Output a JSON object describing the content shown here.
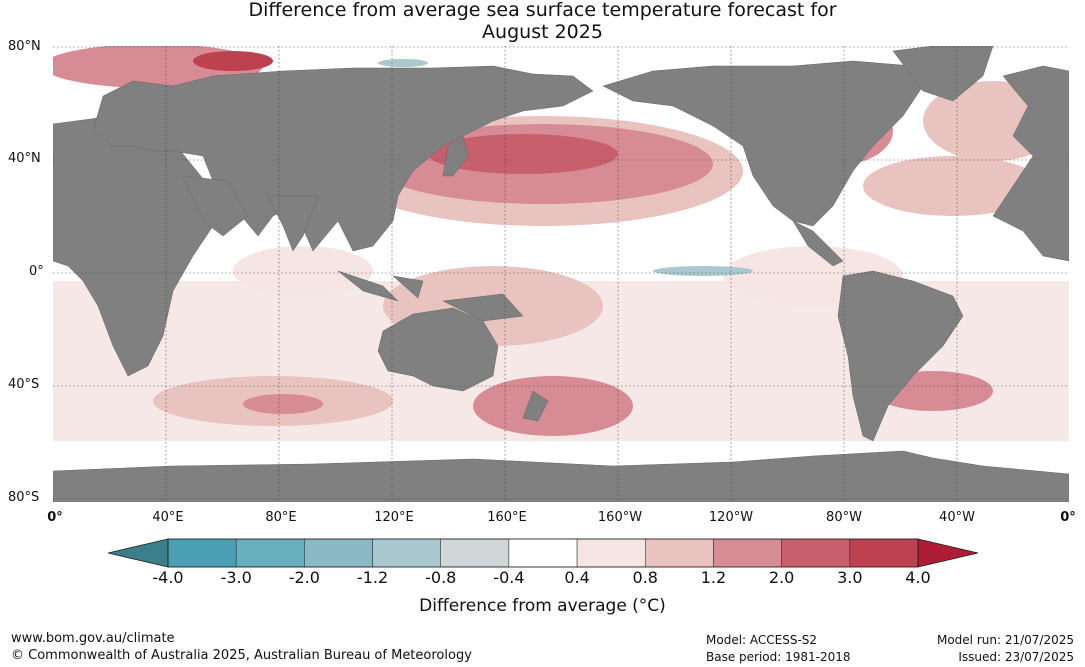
{
  "title": {
    "line1": "Difference from average sea surface temperature forecast for",
    "line2": "August 2025"
  },
  "lat_labels": [
    "80°N",
    "40°N",
    "0°",
    "40°S",
    "80°S"
  ],
  "lon_labels": [
    "0°",
    "40°E",
    "80°E",
    "120°E",
    "160°E",
    "160°W",
    "120°W",
    "80°W",
    "40°W",
    "0°"
  ],
  "colorbar": {
    "ticks": [
      "-4.0",
      "-3.0",
      "-2.0",
      "-1.2",
      "-0.8",
      "-0.4",
      "0.4",
      "0.8",
      "1.2",
      "2.0",
      "3.0",
      "4.0"
    ],
    "colors": [
      "#3a7f8a",
      "#4aa0b2",
      "#68aebc",
      "#88b9c5",
      "#a9c9cf",
      "#d1d6d8",
      "#ffffff",
      "#f5e6e4",
      "#e8c3bf",
      "#d68b95",
      "#c85f6c",
      "#be4150",
      "#ae1c35"
    ],
    "label": "Difference from average (°C)"
  },
  "colors": {
    "land": "#808080",
    "ocean": "#ffffff",
    "grid": "#444444"
  },
  "footer": {
    "left1": "www.bom.gov.au/climate",
    "left2": "© Commonwealth of Australia 2025, Australian Bureau of Meteorology",
    "mid1": "Model: ACCESS-S2",
    "mid2": "Base period: 1981-2018",
    "right1": "Model run: 21/07/2025",
    "right2": "Issued: 23/07/2025"
  }
}
